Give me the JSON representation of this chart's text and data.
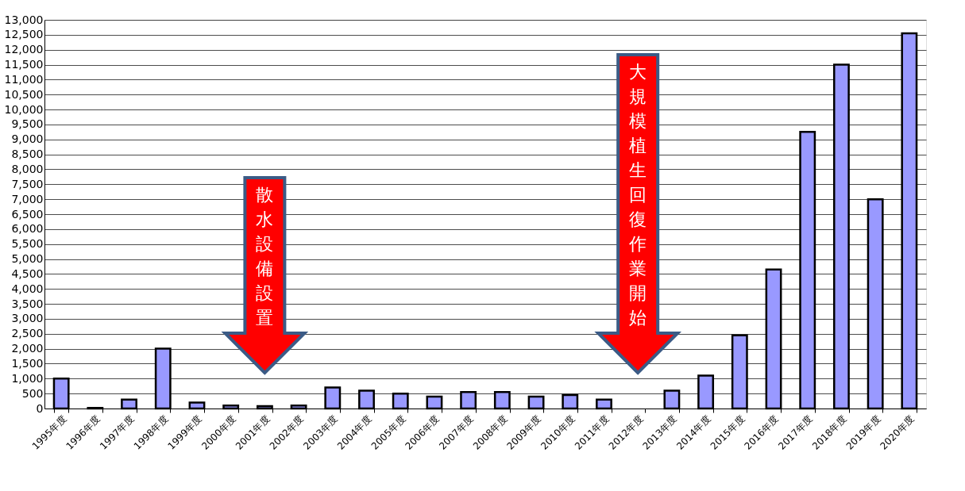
{
  "chart_data": {
    "type": "bar",
    "categories": [
      "1995年度",
      "1996年度",
      "1997年度",
      "1998年度",
      "1999年度",
      "2000年度",
      "2001年度",
      "2002年度",
      "2003年度",
      "2004年度",
      "2005年度",
      "2006年度",
      "2007年度",
      "2008年度",
      "2009年度",
      "2010年度",
      "2011年度",
      "2012年度",
      "2013年度",
      "2014年度",
      "2015年度",
      "2016年度",
      "2017年度",
      "2018年度",
      "2019年度",
      "2020年度"
    ],
    "values": [
      1000,
      20,
      300,
      2000,
      200,
      100,
      80,
      100,
      700,
      600,
      500,
      400,
      550,
      550,
      400,
      450,
      300,
      null,
      600,
      1100,
      2450,
      4650,
      9250,
      11500,
      7000,
      12550
    ],
    "color": "#9999ff",
    "ylim": [
      0,
      13000
    ],
    "yticks": [
      0,
      500,
      {
        "value": 1000,
        "label": "1,000"
      },
      {
        "value": 1500,
        "label": "1,500"
      },
      {
        "value": 2000,
        "label": "2,000"
      },
      {
        "value": 2500,
        "label": "2,500"
      },
      {
        "value": 3000,
        "label": "3,000"
      },
      {
        "value": 3500,
        "label": "3,500"
      },
      {
        "value": 4000,
        "label": "4,000"
      },
      {
        "value": 4500,
        "label": "4,500"
      },
      {
        "value": 5000,
        "label": "5,000"
      },
      {
        "value": 5500,
        "label": "5,500"
      },
      {
        "value": 6000,
        "label": "6,000"
      },
      {
        "value": 6500,
        "label": "6,500"
      },
      {
        "value": 7000,
        "label": "7,000"
      },
      {
        "value": 7500,
        "label": "7,500"
      },
      {
        "value": 8000,
        "label": "8,000"
      },
      {
        "value": 8500,
        "label": "8,500"
      },
      {
        "value": 9000,
        "label": "9,000"
      },
      {
        "value": 9500,
        "label": "9,500"
      },
      {
        "value": 10000,
        "label": "10,000"
      },
      {
        "value": 10500,
        "label": "10,500"
      },
      {
        "value": 11000,
        "label": "11,000"
      },
      {
        "value": 11500,
        "label": "11,500"
      },
      {
        "value": 12000,
        "label": "12,000"
      },
      {
        "value": 12500,
        "label": "12,500"
      },
      {
        "value": 13000,
        "label": "13,000"
      }
    ],
    "grid": "y",
    "annotations": [
      "散水設備設置",
      "大規模植生回復作業開始"
    ]
  }
}
